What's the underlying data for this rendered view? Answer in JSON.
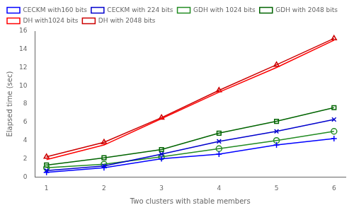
{
  "chart_data": {
    "type": "line",
    "x": [
      1,
      2,
      3,
      4,
      5,
      6
    ],
    "series": [
      {
        "name": "CECKM with160 bits",
        "color": "#0000FF",
        "marker": "plus",
        "values": [
          0.5,
          1.0,
          2.0,
          2.5,
          3.5,
          4.2
        ]
      },
      {
        "name": "CECKM with 224 bits",
        "color": "#0000CD",
        "marker": "x",
        "values": [
          0.7,
          1.2,
          2.5,
          3.9,
          5.0,
          6.3
        ]
      },
      {
        "name": "GDH with 1024 bits",
        "color": "#228B22",
        "marker": "circle",
        "values": [
          1.0,
          1.4,
          2.2,
          3.1,
          4.0,
          5.0
        ]
      },
      {
        "name": "GDH with 2048 bits",
        "color": "#006400",
        "marker": "square",
        "values": [
          1.3,
          2.1,
          3.0,
          4.8,
          6.1,
          7.6
        ]
      },
      {
        "name": "DH with1024 bits",
        "color": "#FF0000",
        "marker": "none",
        "values": [
          1.9,
          3.5,
          6.4,
          9.3,
          12.0,
          15.0
        ]
      },
      {
        "name": "DH with 2048 bits",
        "color": "#CC0000",
        "marker": "triangle",
        "values": [
          2.2,
          3.8,
          6.5,
          9.5,
          12.3,
          15.2
        ]
      }
    ],
    "xlabel": "Two clusters with stable members",
    "ylabel": "Elapsed time (sec)",
    "xlim": [
      0.8,
      6.2
    ],
    "ylim": [
      0,
      16
    ],
    "xticks": [
      1,
      2,
      3,
      4,
      5,
      6
    ],
    "yticks": [
      0,
      2,
      4,
      6,
      8,
      10,
      12,
      14,
      16
    ],
    "grid": false,
    "legend": "upper left"
  }
}
